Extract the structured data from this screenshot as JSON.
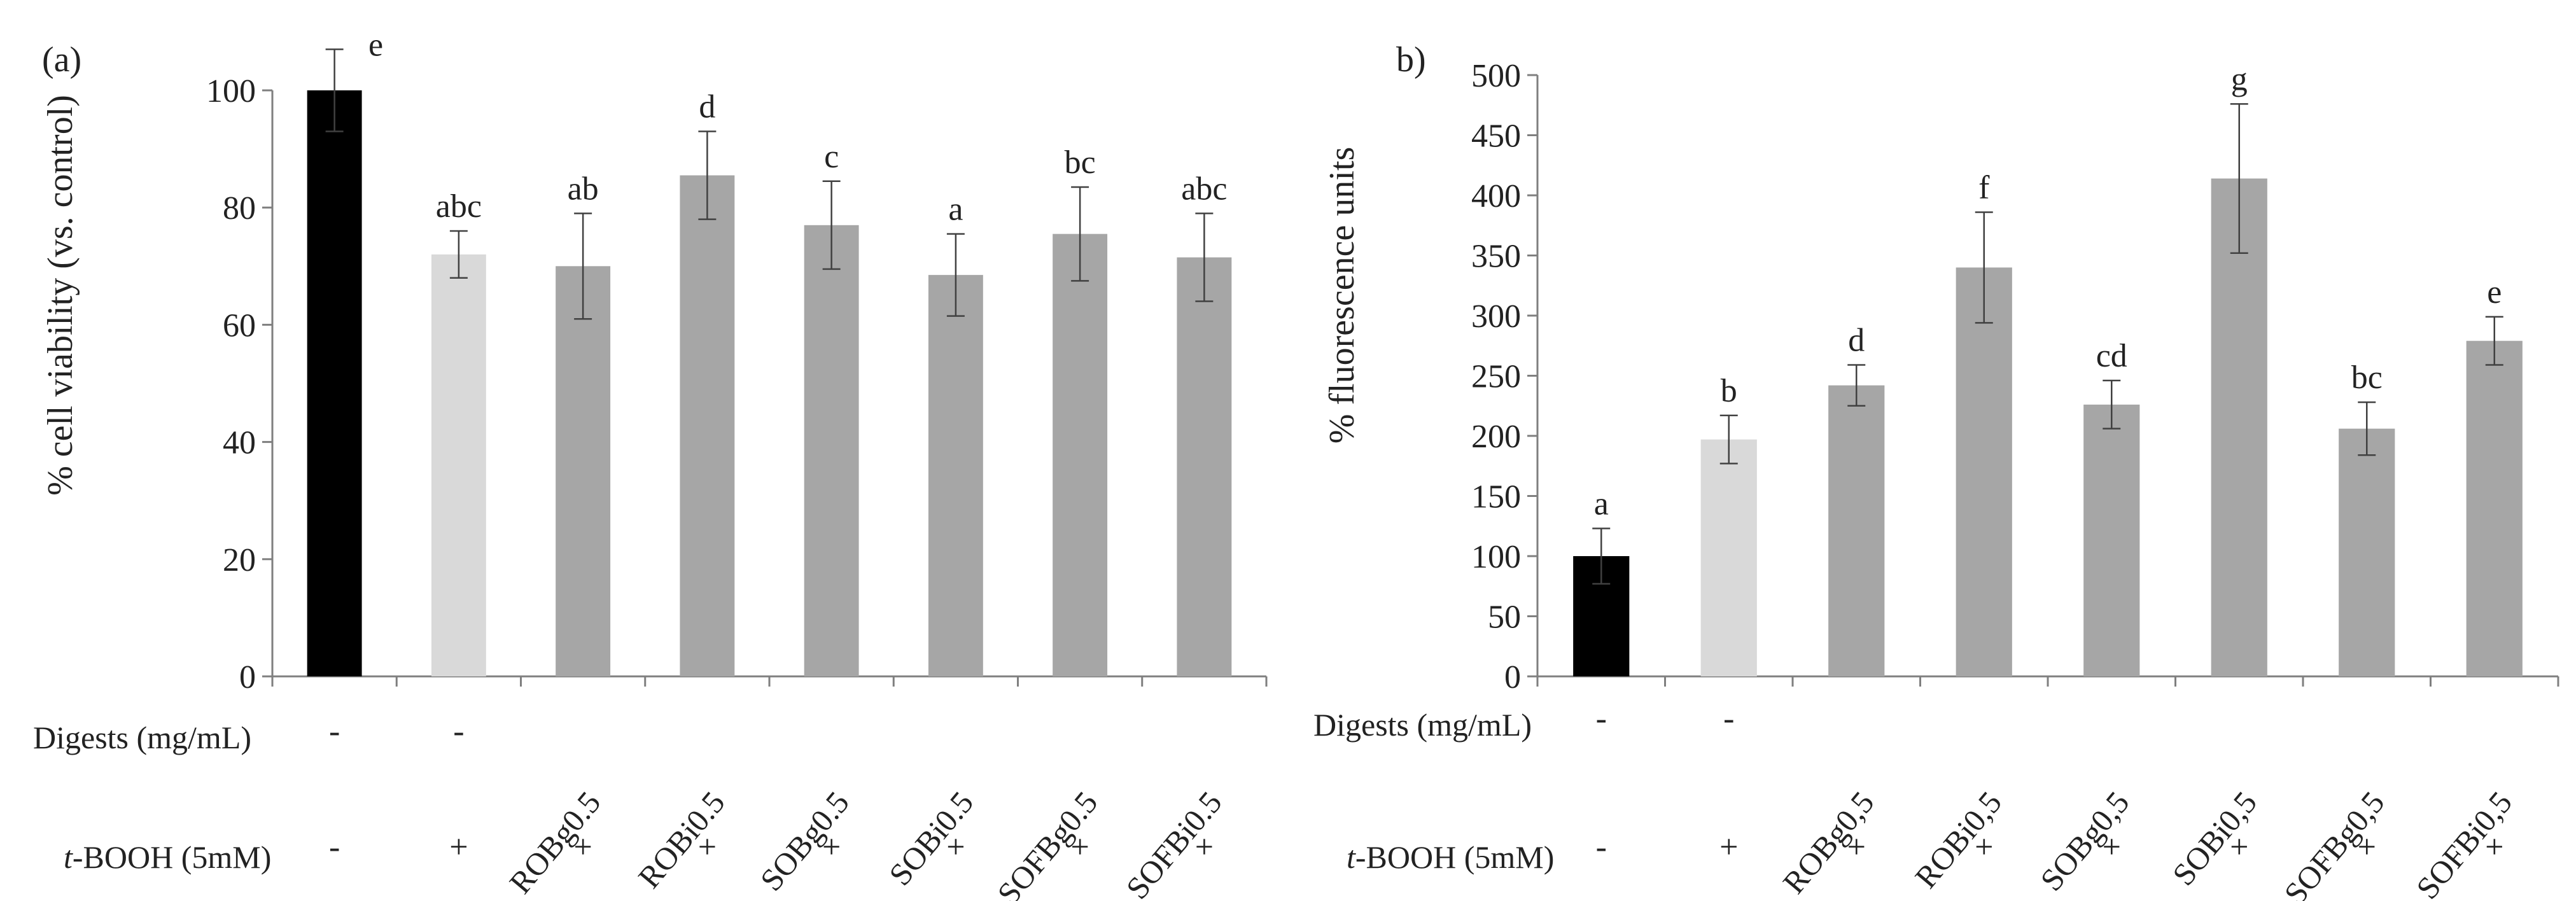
{
  "chart_data": [
    {
      "type": "bar",
      "panel_label": "(a)",
      "ylabel": "% cell viability (vs. control)",
      "ylim": [
        0,
        100
      ],
      "yticks": [
        0,
        20,
        40,
        60,
        80,
        100
      ],
      "categories": [
        "-",
        "-",
        "ROBg0.5",
        "ROBi0.5",
        "SOBg0.5",
        "SOBi0.5",
        "SOFBg0.5",
        "SOFBi0.5"
      ],
      "digests_label": "Digests (mg/mL)",
      "tbooh_label_italic": "t",
      "tbooh_label_rest": "-BOOH (5mM)",
      "tbooh": [
        "-",
        "+",
        "+",
        "+",
        "+",
        "+",
        "+",
        "+"
      ],
      "values": [
        100,
        72,
        70,
        85.5,
        77,
        68.5,
        75.5,
        71.5
      ],
      "errors": [
        7,
        4,
        9,
        7.5,
        7.5,
        7,
        8,
        7.5
      ],
      "letters": [
        "e",
        "abc",
        "ab",
        "d",
        "c",
        "a",
        "bc",
        "abc"
      ],
      "colors": [
        "#000000",
        "#d9d9d9",
        "#a6a6a6",
        "#a6a6a6",
        "#a6a6a6",
        "#a6a6a6",
        "#a6a6a6",
        "#a6a6a6"
      ]
    },
    {
      "type": "bar",
      "panel_label": "b)",
      "ylabel": "% fluorescence units",
      "ylim": [
        0,
        500
      ],
      "yticks": [
        0,
        50,
        100,
        150,
        200,
        250,
        300,
        350,
        400,
        450,
        500
      ],
      "categories": [
        "-",
        "-",
        "ROBg0,5",
        "ROBi0,5",
        "SOBg0,5",
        "SOBi0,5",
        "SOFBg0,5",
        "SOFBi0,5"
      ],
      "digests_label": "Digests (mg/mL)",
      "tbooh_label_italic": "t",
      "tbooh_label_rest": "-BOOH (5mM)",
      "tbooh": [
        "-",
        "+",
        "+",
        "+",
        "+",
        "+",
        "+",
        "+"
      ],
      "values": [
        100,
        197,
        242,
        340,
        226,
        414,
        206,
        279
      ],
      "errors": [
        23,
        20,
        17,
        46,
        20,
        62,
        22,
        20
      ],
      "letters": [
        "a",
        "b",
        "d",
        "f",
        "cd",
        "g",
        "bc",
        "e"
      ],
      "colors": [
        "#000000",
        "#d9d9d9",
        "#a6a6a6",
        "#a6a6a6",
        "#a6a6a6",
        "#a6a6a6",
        "#a6a6a6",
        "#a6a6a6"
      ]
    }
  ]
}
